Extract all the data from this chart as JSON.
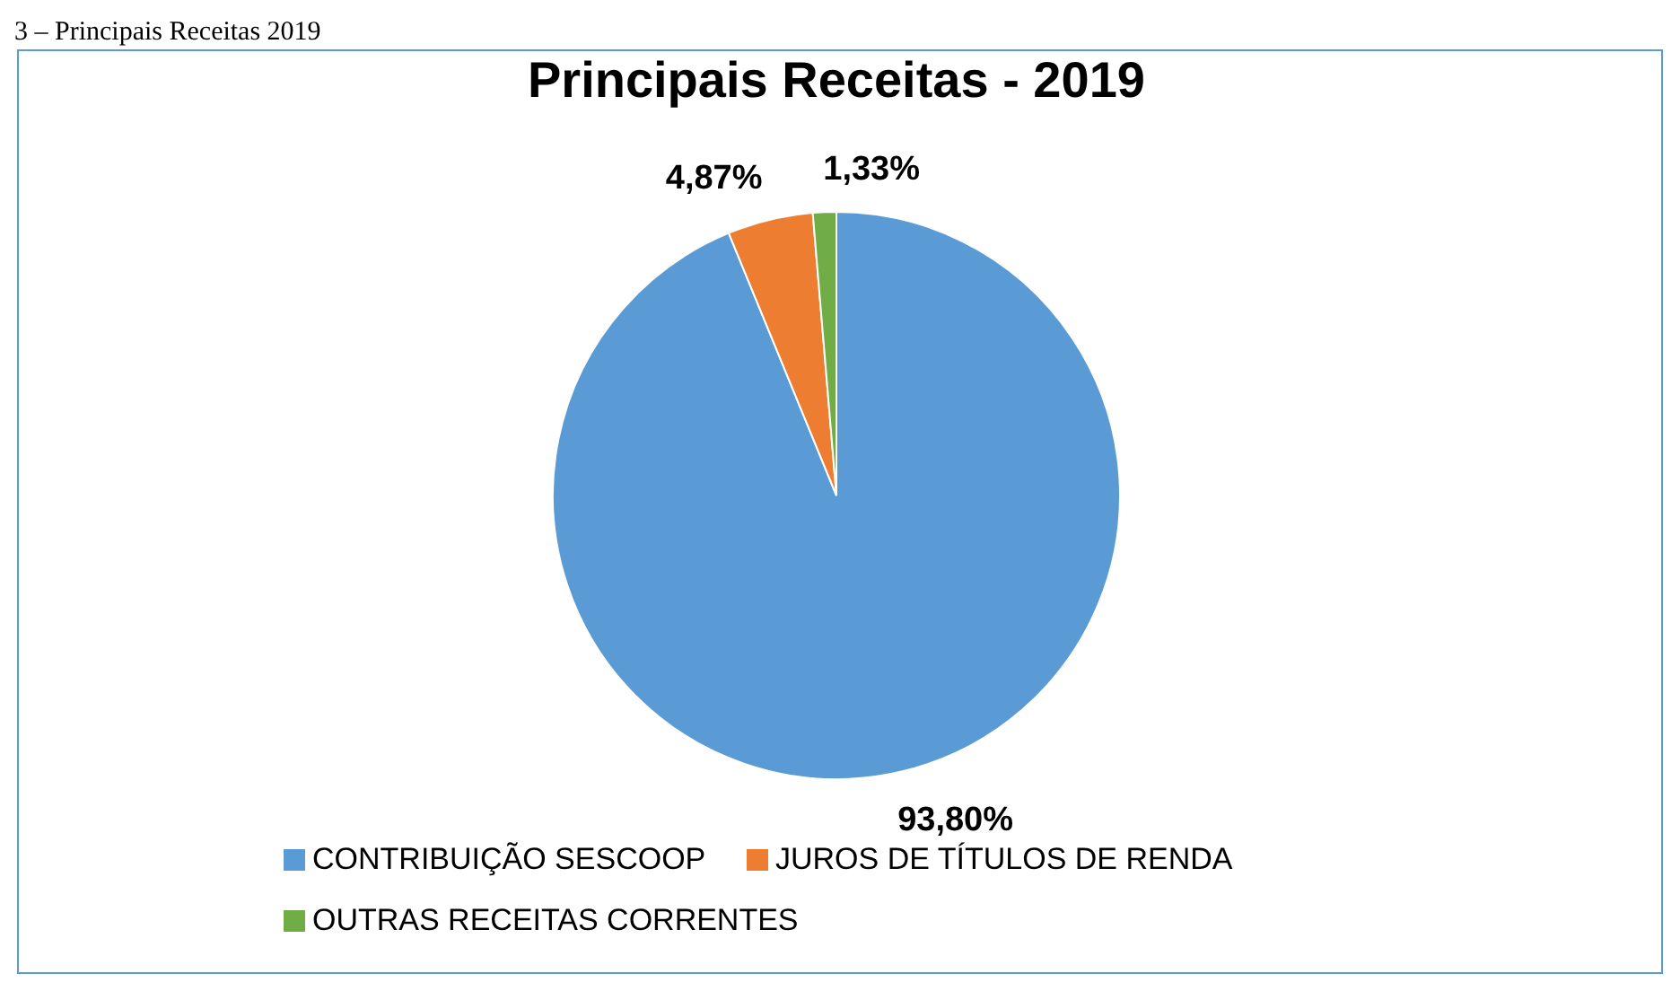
{
  "chart_data": {
    "type": "pie",
    "title": "Principais Receitas - 2019",
    "annotations": [
      "3 – Principais Receitas 2019"
    ],
    "categories": [
      "CONTRIBUIÇÃO SESCOOP",
      "JUROS DE TÍTULOS DE RENDA",
      "OUTRAS RECEITAS CORRENTES"
    ],
    "values": [
      93.8,
      4.87,
      1.33
    ],
    "value_labels": [
      "93,80%",
      "4,87%",
      "1,33%"
    ],
    "colors": [
      "#5b9bd5",
      "#ed7d31",
      "#70ad47"
    ],
    "legend": "bottom"
  }
}
